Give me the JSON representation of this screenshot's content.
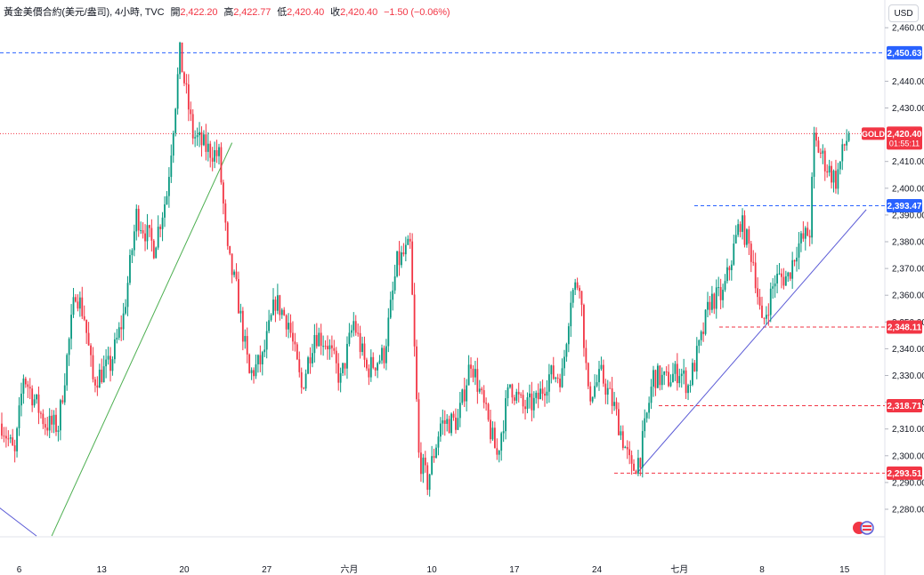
{
  "header": {
    "symbol": "黃金美價合約(美元/盎司)",
    "interval": "4小時",
    "source": "TVC",
    "open_label": "開",
    "open": "2,422.20",
    "high_label": "高",
    "high": "2,422.77",
    "low_label": "低",
    "low": "2,420.40",
    "close_label": "收",
    "close": "2,420.40",
    "change": "−1.50 (−0.06%)"
  },
  "currency": "USD",
  "badge_gold": "GOLD",
  "current_price": "2,420.40",
  "countdown": "01:55:11",
  "colors": {
    "up": "#089981",
    "down": "#f23645",
    "hline_blue": "#2962ff",
    "hline_red": "#f23645",
    "trend_green": "#4caf50",
    "trend_blue": "#5b5bd6"
  },
  "chart_data": {
    "type": "candlestick",
    "ylim": [
      2270,
      2466
    ],
    "y_ticks": [
      "2,280.00",
      "2,290.00",
      "2,300.00",
      "2,310.00",
      "2,320.00",
      "2,330.00",
      "2,340.00",
      "2,350.00",
      "2,360.00",
      "2,370.00",
      "2,380.00",
      "2,390.00",
      "2,400.00",
      "2,410.00",
      "2,430.00",
      "2,440.00",
      "2,460.00"
    ],
    "x_ticks": [
      "6",
      "13",
      "20",
      "27",
      "六月",
      "10",
      "17",
      "24",
      "七月",
      "8",
      "15"
    ],
    "price_lines": [
      {
        "value": 2450.63,
        "label": "2,450.63",
        "color": "blue"
      },
      {
        "value": 2393.47,
        "label": "2,393.47",
        "color": "blue"
      },
      {
        "value": 2348.11,
        "label": "2,348.11",
        "color": "red"
      },
      {
        "value": 2318.71,
        "label": "2,318.71",
        "color": "red"
      },
      {
        "value": 2293.51,
        "label": "2,293.51",
        "color": "red"
      }
    ],
    "current_price_value": 2420.4,
    "waypoints": [
      [
        0,
        2312
      ],
      [
        6,
        2300
      ],
      [
        10,
        2330
      ],
      [
        20,
        2312
      ],
      [
        26,
        2311
      ],
      [
        34,
        2362
      ],
      [
        38,
        2352
      ],
      [
        42,
        2328
      ],
      [
        50,
        2334
      ],
      [
        56,
        2352
      ],
      [
        62,
        2390
      ],
      [
        70,
        2378
      ],
      [
        76,
        2398
      ],
      [
        82,
        2450
      ],
      [
        88,
        2420
      ],
      [
        94,
        2415
      ],
      [
        100,
        2412
      ],
      [
        104,
        2375
      ],
      [
        108,
        2362
      ],
      [
        114,
        2330
      ],
      [
        120,
        2336
      ],
      [
        126,
        2358
      ],
      [
        132,
        2350
      ],
      [
        138,
        2325
      ],
      [
        144,
        2346
      ],
      [
        150,
        2342
      ],
      [
        156,
        2328
      ],
      [
        162,
        2350
      ],
      [
        168,
        2332
      ],
      [
        176,
        2338
      ],
      [
        182,
        2372
      ],
      [
        188,
        2378
      ],
      [
        192,
        2300
      ],
      [
        196,
        2290
      ],
      [
        202,
        2312
      ],
      [
        210,
        2313
      ],
      [
        216,
        2336
      ],
      [
        222,
        2318
      ],
      [
        228,
        2300
      ],
      [
        234,
        2327
      ],
      [
        240,
        2318
      ],
      [
        246,
        2320
      ],
      [
        252,
        2330
      ],
      [
        258,
        2330
      ],
      [
        262,
        2360
      ],
      [
        266,
        2366
      ],
      [
        270,
        2322
      ],
      [
        276,
        2330
      ],
      [
        282,
        2318
      ],
      [
        290,
        2294
      ],
      [
        294,
        2300
      ],
      [
        300,
        2330
      ],
      [
        306,
        2328
      ],
      [
        312,
        2332
      ],
      [
        316,
        2326
      ],
      [
        322,
        2343
      ],
      [
        326,
        2358
      ],
      [
        332,
        2360
      ],
      [
        340,
        2388
      ],
      [
        346,
        2373
      ],
      [
        350,
        2348
      ],
      [
        356,
        2366
      ],
      [
        362,
        2367
      ],
      [
        366,
        2378
      ],
      [
        372,
        2384
      ],
      [
        374,
        2418
      ],
      [
        380,
        2408
      ],
      [
        384,
        2403
      ],
      [
        388,
        2416
      ],
      [
        390,
        2420.4
      ]
    ],
    "trendlines": [
      {
        "from": [
          23,
          2270
        ],
        "to": [
          106,
          2417
        ],
        "color": "green"
      },
      {
        "from": [
          293,
          2294
        ],
        "to": [
          398,
          2392
        ],
        "color": "blue"
      },
      {
        "from": [
          -5,
          2283
        ],
        "to": [
          16,
          2270
        ],
        "color": "blue"
      }
    ]
  }
}
